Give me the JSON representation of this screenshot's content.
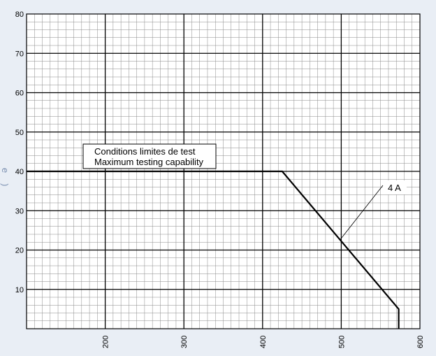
{
  "chart_data": {
    "type": "line",
    "title": "",
    "xlabel": "",
    "ylabel": "",
    "xlim": [
      100,
      600
    ],
    "ylim": [
      0,
      80
    ],
    "x_ticks": [
      200,
      300,
      400,
      500,
      600
    ],
    "y_ticks": [
      10,
      20,
      30,
      40,
      50,
      60,
      70,
      80
    ],
    "grid": true,
    "series": [
      {
        "name": "4 A",
        "points": [
          [
            100,
            40
          ],
          [
            425,
            40
          ],
          [
            573,
            5
          ],
          [
            573,
            0
          ]
        ],
        "color": "#000000"
      }
    ],
    "annotations": {
      "box_lines": [
        "Conditions limites de test",
        "Maximum testing capability"
      ],
      "curve_label": "4 A",
      "pointer_target": [
        500,
        22
      ]
    }
  },
  "side_fragments": [
    "e",
    ")"
  ],
  "colors": {
    "background": "#e9eef5",
    "plot": "#ffffff",
    "grid_major": "#000000",
    "grid_minor": "#8a8a8a",
    "side_text": "#7a8fb0"
  }
}
